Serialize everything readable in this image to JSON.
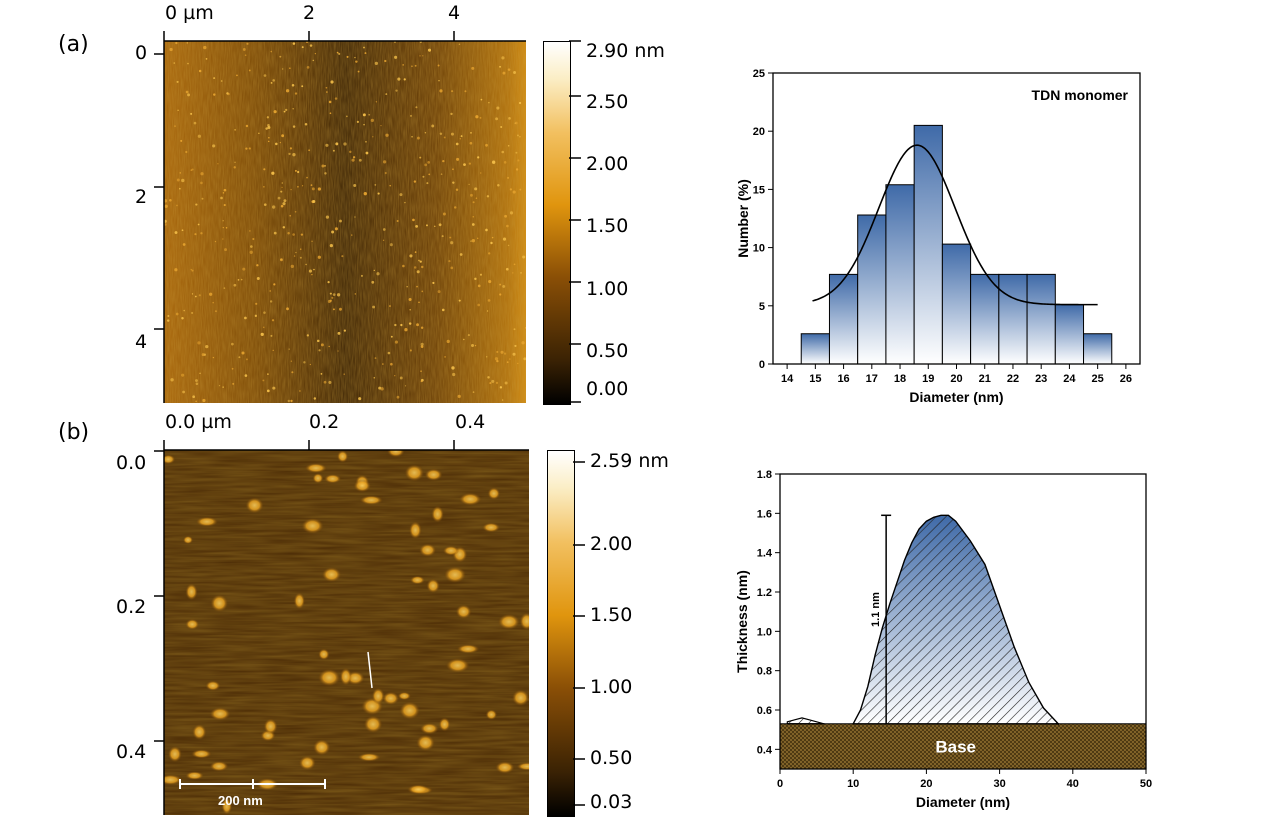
{
  "panels": [
    {
      "label": "(a)",
      "afm": {
        "x_ticks": [
          "0 µm",
          "2",
          "4"
        ],
        "y_ticks": [
          "0",
          "2",
          "4"
        ],
        "colorbar_ticks": [
          "2.90 nm",
          "2.50",
          "2.00",
          "1.50",
          "1.00",
          "0.50",
          "0.00"
        ],
        "colorbar_range": [
          0.0,
          2.9
        ]
      }
    },
    {
      "label": "(b)",
      "afm": {
        "x_ticks": [
          "0.0 µm",
          "0.2",
          "0.4"
        ],
        "y_ticks": [
          "0.0",
          "0.2",
          "0.4"
        ],
        "colorbar_ticks": [
          "2.59 nm",
          "2.00",
          "1.50",
          "1.00",
          "0.50",
          "0.03"
        ],
        "colorbar_range": [
          0.03,
          2.59
        ],
        "scale_bar_label": "200 nm"
      }
    }
  ],
  "chart_data": [
    {
      "type": "bar",
      "title": "",
      "annotation": "TDN monomer",
      "xlabel": "Diameter (nm)",
      "ylabel": "Number (%)",
      "x": [
        15,
        16,
        17,
        18,
        19,
        20,
        21,
        22,
        23,
        24,
        25
      ],
      "values": [
        2.6,
        7.7,
        12.8,
        15.4,
        20.5,
        10.3,
        7.7,
        7.7,
        7.7,
        5.1,
        2.6
      ],
      "fit": {
        "type": "gaussian",
        "baseline": 5.1,
        "amplitude": 13.7,
        "center": 18.6,
        "sigma": 1.35,
        "x_range": [
          14.9,
          25.0
        ]
      },
      "xlim": [
        13.5,
        26.5
      ],
      "ylim": [
        0,
        25
      ],
      "x_ticks": [
        14,
        15,
        16,
        17,
        18,
        19,
        20,
        21,
        22,
        23,
        24,
        25,
        26
      ],
      "y_ticks": [
        0,
        5,
        10,
        15,
        20,
        25
      ],
      "bar_color": "#3f6aa8"
    },
    {
      "type": "area",
      "title": "",
      "xlabel": "Diameter (nm)",
      "ylabel": "Thickness (nm)",
      "x": [
        1,
        2,
        3,
        4,
        5,
        6,
        10,
        11,
        12,
        13,
        14,
        15,
        16,
        17,
        18,
        19,
        20,
        21,
        22,
        23,
        24,
        26,
        28,
        30,
        32,
        34,
        36,
        38
      ],
      "y": [
        0.54,
        0.55,
        0.56,
        0.55,
        0.54,
        0.53,
        0.53,
        0.6,
        0.72,
        0.88,
        1.02,
        1.14,
        1.25,
        1.36,
        1.45,
        1.52,
        1.56,
        1.58,
        1.59,
        1.59,
        1.56,
        1.46,
        1.34,
        1.13,
        0.92,
        0.74,
        0.61,
        0.53
      ],
      "base": {
        "label": "Base",
        "y_top": 0.53,
        "y_bottom": 0.3,
        "color": "#8a6a2c"
      },
      "annotation": {
        "label": "1.1 nm",
        "x": 14.5,
        "y_from": 0.53,
        "y_to": 1.59
      },
      "xlim": [
        0,
        50
      ],
      "ylim": [
        0.3,
        1.8
      ],
      "x_ticks": [
        0,
        10,
        20,
        30,
        40,
        50
      ],
      "y_ticks": [
        0.4,
        0.6,
        0.8,
        1.0,
        1.2,
        1.4,
        1.6,
        1.8
      ],
      "fill_color": "#3f6aa8"
    }
  ]
}
